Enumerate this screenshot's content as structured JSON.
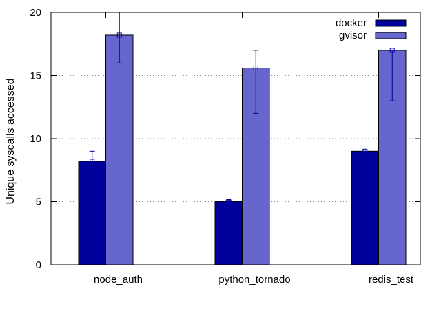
{
  "chart_data": {
    "type": "bar",
    "title": "",
    "xlabel": "",
    "ylabel": "Unique syscalls accessed",
    "categories": [
      "node_auth",
      "python_tornado",
      "redis_test"
    ],
    "series": [
      {
        "name": "docker",
        "color": "#00009b",
        "values": [
          8.2,
          5.0,
          9.0
        ],
        "error_low": [
          8.2,
          5.0,
          9.0
        ],
        "error_high": [
          9.0,
          5.1,
          9.1
        ]
      },
      {
        "name": "gvisor",
        "color": "#6666cc",
        "values": [
          18.2,
          15.6,
          17.0
        ],
        "error_low": [
          16.0,
          12.0,
          13.0
        ],
        "error_high": [
          20.0,
          17.0,
          17.0
        ]
      }
    ],
    "ylim": [
      0,
      20
    ],
    "yticks": [
      "0",
      "5",
      "10",
      "15",
      "20"
    ],
    "ytick_values": [
      0,
      5,
      10,
      15,
      20
    ],
    "grid": "horizontal dotted",
    "legend_position": "top-right",
    "error_bar_color": "#00009b"
  }
}
